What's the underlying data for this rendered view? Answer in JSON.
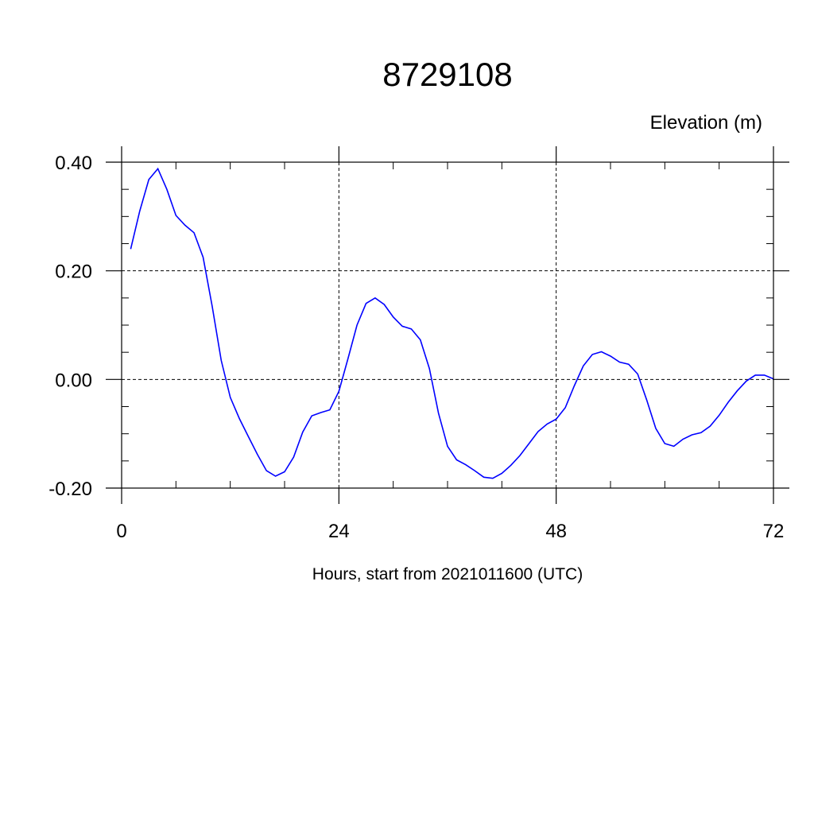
{
  "chart_data": {
    "type": "line",
    "title": "8729108",
    "units_label": "Elevation (m)",
    "xlabel": "Hours, start from 2021011600 (UTC)",
    "ylabel": "",
    "xlim": [
      0,
      72
    ],
    "ylim": [
      -0.2,
      0.4
    ],
    "x_ticks": [
      0,
      24,
      48,
      72
    ],
    "x_tick_labels": [
      "0",
      "24",
      "48",
      "72"
    ],
    "y_ticks": [
      -0.2,
      0.0,
      0.2,
      0.4
    ],
    "y_tick_labels": [
      "-0.20",
      "0.00",
      "0.20",
      "0.40"
    ],
    "grid": true,
    "line_color": "#0000ff",
    "series": [
      {
        "x": [
          1,
          2,
          3,
          4,
          5,
          6,
          7,
          8,
          9,
          10,
          11,
          12,
          13,
          14,
          15,
          16,
          17,
          18,
          19,
          20,
          21,
          22,
          23,
          24,
          25,
          26,
          27,
          28,
          29,
          30,
          31,
          32,
          33,
          34,
          35,
          36,
          37,
          38,
          39,
          40,
          41,
          42,
          43,
          44,
          45,
          46,
          47,
          48,
          49,
          50,
          51,
          52,
          53,
          54,
          55,
          56,
          57,
          58,
          59,
          60,
          61,
          62,
          63,
          64,
          65,
          66,
          67,
          68,
          69,
          70,
          71,
          72
        ],
        "values": [
          0.24,
          0.31,
          0.368,
          0.388,
          0.35,
          0.302,
          0.284,
          0.27,
          0.225,
          0.135,
          0.035,
          -0.033,
          -0.072,
          -0.105,
          -0.138,
          -0.168,
          -0.178,
          -0.17,
          -0.143,
          -0.097,
          -0.067,
          -0.061,
          -0.056,
          -0.022,
          0.038,
          0.1,
          0.14,
          0.15,
          0.138,
          0.115,
          0.098,
          0.093,
          0.073,
          0.02,
          -0.062,
          -0.123,
          -0.148,
          -0.157,
          -0.168,
          -0.18,
          -0.182,
          -0.173,
          -0.158,
          -0.14,
          -0.118,
          -0.096,
          -0.082,
          -0.073,
          -0.052,
          -0.012,
          0.025,
          0.046,
          0.051,
          0.043,
          0.032,
          0.028,
          0.01,
          -0.038,
          -0.09,
          -0.118,
          -0.123,
          -0.11,
          -0.102,
          -0.098,
          -0.086,
          -0.066,
          -0.042,
          -0.021,
          -0.003,
          0.008,
          0.008,
          0.001
        ]
      }
    ]
  }
}
